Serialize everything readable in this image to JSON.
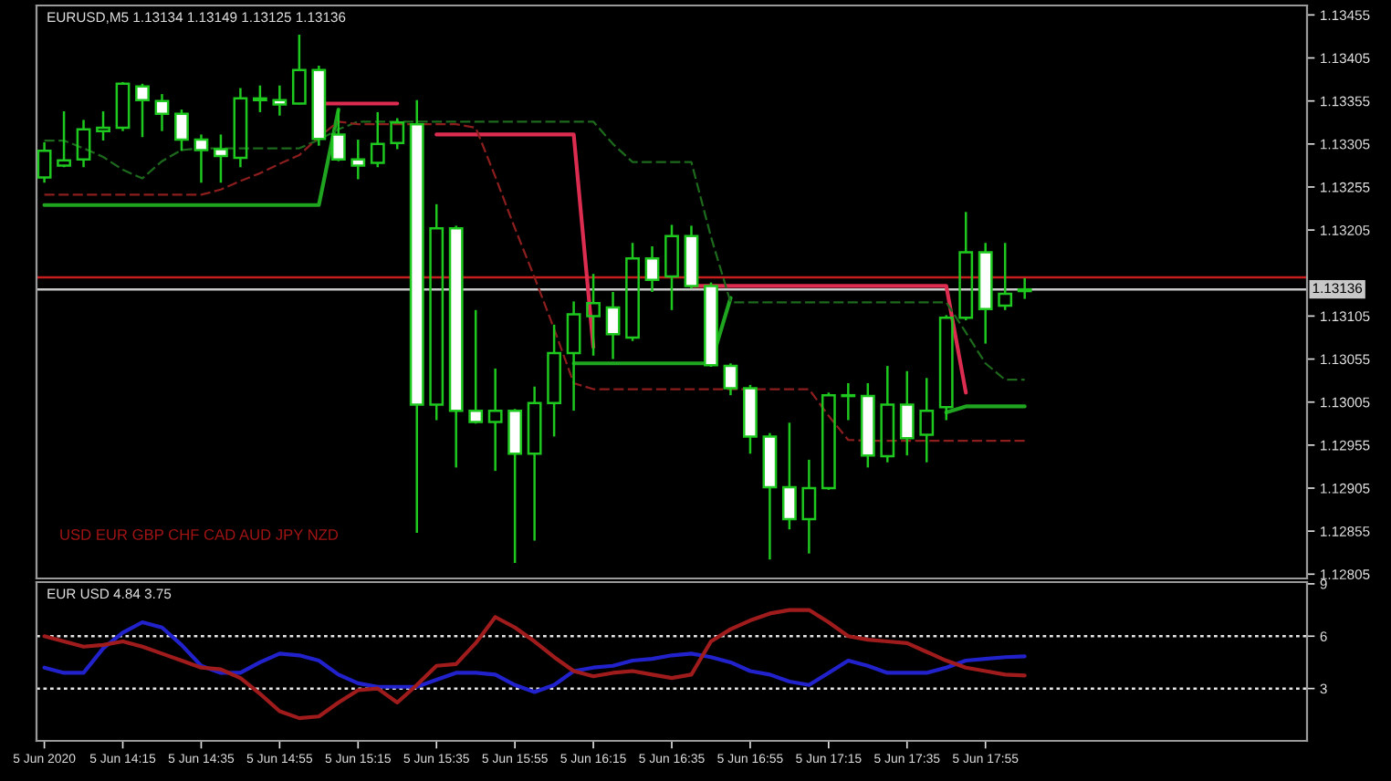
{
  "chart_data": [
    {
      "type": "candlestick",
      "title": "EURUSD,M5 1.13134 1.13149 1.13125 1.13136",
      "annotations": [
        "USD EUR GBP CHF CAD AUD JPY NZD"
      ],
      "x": [
        "2020-06-05T13:55",
        "2020-06-05T14:00",
        "2020-06-05T14:05",
        "2020-06-05T14:10",
        "2020-06-05T14:15",
        "2020-06-05T14:20",
        "2020-06-05T14:25",
        "2020-06-05T14:30",
        "2020-06-05T14:35",
        "2020-06-05T14:40",
        "2020-06-05T14:45",
        "2020-06-05T14:50",
        "2020-06-05T14:55",
        "2020-06-05T15:00",
        "2020-06-05T15:05",
        "2020-06-05T15:10",
        "2020-06-05T15:15",
        "2020-06-05T15:20",
        "2020-06-05T15:25",
        "2020-06-05T15:30",
        "2020-06-05T15:35",
        "2020-06-05T15:40",
        "2020-06-05T15:45",
        "2020-06-05T15:50",
        "2020-06-05T15:55",
        "2020-06-05T16:00",
        "2020-06-05T16:05",
        "2020-06-05T16:10",
        "2020-06-05T16:15",
        "2020-06-05T16:20",
        "2020-06-05T16:25",
        "2020-06-05T16:30",
        "2020-06-05T16:35",
        "2020-06-05T16:40",
        "2020-06-05T16:45",
        "2020-06-05T16:50",
        "2020-06-05T16:55",
        "2020-06-05T17:00",
        "2020-06-05T17:05",
        "2020-06-05T17:10",
        "2020-06-05T17:15",
        "2020-06-05T17:20",
        "2020-06-05T17:25",
        "2020-06-05T17:30",
        "2020-06-05T17:35",
        "2020-06-05T17:40",
        "2020-06-05T17:45",
        "2020-06-05T17:50",
        "2020-06-05T17:55",
        "2020-06-05T18:00",
        "2020-06-05T18:05"
      ],
      "ohlc": [
        [
          1.13266,
          1.13307,
          1.1326,
          1.13297
        ],
        [
          1.1328,
          1.13343,
          1.13278,
          1.13286
        ],
        [
          1.13287,
          1.13333,
          1.13278,
          1.13322
        ],
        [
          1.1332,
          1.13343,
          1.13309,
          1.13324
        ],
        [
          1.13324,
          1.13377,
          1.1332,
          1.13375
        ],
        [
          1.13372,
          1.13375,
          1.13313,
          1.13356
        ],
        [
          1.13355,
          1.13363,
          1.1332,
          1.1334
        ],
        [
          1.1334,
          1.13345,
          1.13297,
          1.1331
        ],
        [
          1.1331,
          1.13316,
          1.1326,
          1.13298
        ],
        [
          1.13299,
          1.13316,
          1.1326,
          1.13291
        ],
        [
          1.13289,
          1.1337,
          1.13278,
          1.13358
        ],
        [
          1.13358,
          1.13373,
          1.13342,
          1.13356
        ],
        [
          1.13356,
          1.13373,
          1.13338,
          1.13351
        ],
        [
          1.13352,
          1.13432,
          1.13351,
          1.13391
        ],
        [
          1.13391,
          1.13396,
          1.13303,
          1.13311
        ],
        [
          1.13316,
          1.13345,
          1.13285,
          1.13287
        ],
        [
          1.13287,
          1.1331,
          1.13264,
          1.1328
        ],
        [
          1.13283,
          1.13342,
          1.13278,
          1.13305
        ],
        [
          1.13306,
          1.13335,
          1.13299,
          1.1333
        ],
        [
          1.13328,
          1.13356,
          1.12853,
          1.13002
        ],
        [
          1.13002,
          1.13235,
          1.12984,
          1.13207
        ],
        [
          1.13207,
          1.1321,
          1.12929,
          1.12995
        ],
        [
          1.12995,
          1.13112,
          1.1298,
          1.12982
        ],
        [
          1.12982,
          1.13044,
          1.12925,
          1.12995
        ],
        [
          1.12995,
          1.12997,
          1.12818,
          1.12945
        ],
        [
          1.12945,
          1.13023,
          1.12844,
          1.13004
        ],
        [
          1.13004,
          1.13095,
          1.12965,
          1.13062
        ],
        [
          1.13062,
          1.13122,
          1.12995,
          1.13107
        ],
        [
          1.13105,
          1.13154,
          1.13059,
          1.1312
        ],
        [
          1.13115,
          1.13133,
          1.13055,
          1.13084
        ],
        [
          1.1308,
          1.1319,
          1.13076,
          1.13172
        ],
        [
          1.13172,
          1.13186,
          1.13133,
          1.13147
        ],
        [
          1.13151,
          1.13211,
          1.13112,
          1.13198
        ],
        [
          1.13198,
          1.1321,
          1.13137,
          1.1314
        ],
        [
          1.1314,
          1.13144,
          1.13046,
          1.13048
        ],
        [
          1.13047,
          1.1305,
          1.13013,
          1.13021
        ],
        [
          1.13021,
          1.13025,
          1.12945,
          1.12965
        ],
        [
          1.12965,
          1.12969,
          1.12822,
          1.12906
        ],
        [
          1.12906,
          1.12981,
          1.12857,
          1.12869
        ],
        [
          1.12869,
          1.12938,
          1.12829,
          1.12905
        ],
        [
          1.12905,
          1.13016,
          1.12903,
          1.13013
        ],
        [
          1.13013,
          1.13027,
          1.12984,
          1.13012
        ],
        [
          1.13012,
          1.13027,
          1.12929,
          1.12943
        ],
        [
          1.12942,
          1.13047,
          1.12935,
          1.13002
        ],
        [
          1.13002,
          1.13041,
          1.12943,
          1.12963
        ],
        [
          1.12967,
          1.13033,
          1.12935,
          1.12995
        ],
        [
          1.12999,
          1.13106,
          1.12984,
          1.13103
        ],
        [
          1.13103,
          1.13226,
          1.131,
          1.13179
        ],
        [
          1.13179,
          1.1319,
          1.13073,
          1.13113
        ],
        [
          1.13117,
          1.1319,
          1.13112,
          1.13131
        ],
        [
          1.13134,
          1.13149,
          1.13125,
          1.13136
        ]
      ],
      "color": "#1ec81e",
      "series": [
        {
          "type": "line",
          "color": "#1fa51f",
          "line_style": "solid",
          "values": [
            1.13234,
            1.13234,
            1.13234,
            1.13234,
            1.13234,
            1.13234,
            1.13234,
            1.13234,
            1.13234,
            1.13234,
            1.13234,
            1.13234,
            1.13234,
            1.13234,
            1.13234,
            1.13345,
            null,
            null,
            null,
            null,
            null,
            null,
            null,
            null,
            null,
            null,
            null,
            1.1305,
            1.1305,
            1.1305,
            1.1305,
            1.1305,
            1.1305,
            1.1305,
            1.1305,
            1.13126,
            null,
            null,
            null,
            null,
            null,
            null,
            null,
            null,
            null,
            null,
            1.12993,
            1.13,
            1.13,
            1.13,
            1.13
          ]
        },
        {
          "type": "line",
          "color": "#dc2c50",
          "line_style": "solid",
          "values": [
            null,
            null,
            null,
            null,
            null,
            null,
            null,
            null,
            null,
            null,
            null,
            null,
            null,
            null,
            1.13352,
            1.13352,
            1.13352,
            1.13352,
            1.13352,
            null,
            1.13316,
            1.13316,
            1.13316,
            1.13316,
            1.13316,
            1.13316,
            1.13316,
            1.13316,
            1.13069,
            null,
            null,
            null,
            null,
            1.1314,
            1.1314,
            1.1314,
            1.1314,
            1.1314,
            1.1314,
            1.1314,
            1.1314,
            1.1314,
            1.1314,
            1.1314,
            1.1314,
            1.1314,
            1.1314,
            1.13016,
            null,
            null,
            null
          ]
        },
        {
          "type": "line",
          "color": "#1d6a1d",
          "line_style": "dashed",
          "values": [
            1.13309,
            1.13309,
            1.133,
            1.1329,
            1.13275,
            1.13265,
            1.13285,
            1.13298,
            1.133,
            1.133,
            1.133,
            1.133,
            1.133,
            1.133,
            1.1331,
            1.13322,
            1.13331,
            1.13331,
            1.13331,
            1.13331,
            1.13331,
            1.13331,
            1.13331,
            1.13331,
            1.13331,
            1.13331,
            1.13331,
            1.13331,
            1.13331,
            1.13305,
            1.13284,
            1.13284,
            1.13284,
            1.13284,
            1.13197,
            1.13121,
            1.13121,
            1.13121,
            1.13121,
            1.13121,
            1.13121,
            1.13121,
            1.13121,
            1.13121,
            1.13121,
            1.13121,
            1.13121,
            1.13086,
            1.1305,
            1.13031,
            1.13031
          ]
        },
        {
          "type": "line",
          "color": "#8c1e1e",
          "line_style": "dashed",
          "values": [
            1.13246,
            1.13246,
            1.13246,
            1.13246,
            1.13246,
            1.13246,
            1.13246,
            1.13246,
            1.13246,
            1.13252,
            1.13262,
            1.13271,
            1.13282,
            1.13292,
            1.13313,
            1.13331,
            1.13328,
            1.13328,
            1.13328,
            1.13328,
            1.13328,
            1.13328,
            1.13324,
            1.13267,
            1.13207,
            1.1315,
            1.1309,
            1.13027,
            1.1302,
            1.1302,
            1.1302,
            1.1302,
            1.1302,
            1.1302,
            1.1302,
            1.1302,
            1.1302,
            1.1302,
            1.1302,
            1.1302,
            1.12989,
            1.12961,
            1.1296,
            1.1296,
            1.1296,
            1.1296,
            1.1296,
            1.1296,
            1.1296,
            1.1296,
            1.1296
          ]
        }
      ],
      "xlim": [
        "2020-06-05T13:53",
        "2020-06-05T19:17"
      ],
      "ylim": [
        1.128,
        1.13466
      ],
      "yticks": [
        1.12805,
        1.12855,
        1.12905,
        1.12955,
        1.13005,
        1.13055,
        1.13105,
        1.13205,
        1.13255,
        1.13305,
        1.13355,
        1.13405,
        1.13455
      ],
      "ref_lines": [
        {
          "axis": "y",
          "value": 1.1315,
          "color": "#c81e1e",
          "line_style": "solid"
        },
        {
          "axis": "y",
          "value": 1.13136,
          "label": "1.13136",
          "color": "#c8c8c8",
          "line_style": "solid"
        }
      ],
      "tick_labels": "y"
    },
    {
      "type": "line",
      "title": "EUR USD 4.84 3.75",
      "x": [
        "2020-06-05T13:55",
        "2020-06-05T14:00",
        "2020-06-05T14:05",
        "2020-06-05T14:10",
        "2020-06-05T14:15",
        "2020-06-05T14:20",
        "2020-06-05T14:25",
        "2020-06-05T14:30",
        "2020-06-05T14:35",
        "2020-06-05T14:40",
        "2020-06-05T14:45",
        "2020-06-05T14:50",
        "2020-06-05T14:55",
        "2020-06-05T15:00",
        "2020-06-05T15:05",
        "2020-06-05T15:10",
        "2020-06-05T15:15",
        "2020-06-05T15:20",
        "2020-06-05T15:25",
        "2020-06-05T15:30",
        "2020-06-05T15:35",
        "2020-06-05T15:40",
        "2020-06-05T15:45",
        "2020-06-05T15:50",
        "2020-06-05T15:55",
        "2020-06-05T16:00",
        "2020-06-05T16:05",
        "2020-06-05T16:10",
        "2020-06-05T16:15",
        "2020-06-05T16:20",
        "2020-06-05T16:25",
        "2020-06-05T16:30",
        "2020-06-05T16:35",
        "2020-06-05T16:40",
        "2020-06-05T16:45",
        "2020-06-05T16:50",
        "2020-06-05T16:55",
        "2020-06-05T17:00",
        "2020-06-05T17:05",
        "2020-06-05T17:10",
        "2020-06-05T17:15",
        "2020-06-05T17:20",
        "2020-06-05T17:25",
        "2020-06-05T17:30",
        "2020-06-05T17:35",
        "2020-06-05T17:40",
        "2020-06-05T17:45",
        "2020-06-05T17:50",
        "2020-06-05T17:55",
        "2020-06-05T18:00",
        "2020-06-05T18:05"
      ],
      "series": [
        {
          "color": "#2222cc",
          "line_style": "solid",
          "values": [
            4.2,
            3.9,
            3.9,
            5.3,
            6.2,
            6.8,
            6.5,
            5.5,
            4.3,
            3.9,
            3.9,
            4.5,
            5.0,
            4.9,
            4.6,
            3.8,
            3.3,
            3.1,
            3.1,
            3.1,
            3.5,
            3.9,
            3.9,
            3.8,
            3.2,
            2.8,
            3.2,
            4.0,
            4.2,
            4.3,
            4.6,
            4.7,
            4.9,
            5.0,
            4.8,
            4.5,
            4.0,
            3.8,
            3.4,
            3.2,
            3.9,
            4.6,
            4.3,
            3.9,
            3.9,
            3.9,
            4.2,
            4.6,
            4.7,
            4.8,
            4.84
          ]
        },
        {
          "color": "#a01c1c",
          "line_style": "solid",
          "values": [
            6.0,
            5.7,
            5.4,
            5.5,
            5.7,
            5.4,
            5.0,
            4.6,
            4.2,
            4.1,
            3.6,
            2.7,
            1.7,
            1.3,
            1.4,
            2.2,
            2.9,
            3.0,
            2.2,
            3.2,
            4.3,
            4.4,
            5.6,
            7.1,
            6.5,
            5.7,
            4.8,
            4.0,
            3.7,
            3.9,
            4.0,
            3.8,
            3.6,
            3.8,
            5.7,
            6.4,
            6.9,
            7.3,
            7.5,
            7.5,
            6.8,
            6.0,
            5.8,
            5.7,
            5.6,
            5.1,
            4.6,
            4.2,
            4.0,
            3.8,
            3.75
          ]
        }
      ],
      "xlim": [
        "2020-06-05T13:53",
        "2020-06-05T19:17"
      ],
      "xticks": [
        {
          "value": "2020-06-05T13:55",
          "label": "5 Jun 2020"
        },
        {
          "value": "2020-06-05T14:15",
          "label": "5 Jun 14:15"
        },
        {
          "value": "2020-06-05T14:35",
          "label": "5 Jun 14:35"
        },
        {
          "value": "2020-06-05T14:55",
          "label": "5 Jun 14:55"
        },
        {
          "value": "2020-06-05T15:15",
          "label": "5 Jun 15:15"
        },
        {
          "value": "2020-06-05T15:35",
          "label": "5 Jun 15:35"
        },
        {
          "value": "2020-06-05T15:55",
          "label": "5 Jun 15:55"
        },
        {
          "value": "2020-06-05T16:15",
          "label": "5 Jun 16:15"
        },
        {
          "value": "2020-06-05T16:35",
          "label": "5 Jun 16:35"
        },
        {
          "value": "2020-06-05T16:55",
          "label": "5 Jun 16:55"
        },
        {
          "value": "2020-06-05T17:15",
          "label": "5 Jun 17:15"
        },
        {
          "value": "2020-06-05T17:35",
          "label": "5 Jun 17:35"
        },
        {
          "value": "2020-06-05T17:55",
          "label": "5 Jun 17:55"
        }
      ],
      "ylim": [
        0,
        9.1
      ],
      "yticks": [
        3,
        6,
        9
      ],
      "ref_lines": [
        {
          "axis": "y",
          "value": 6,
          "color": "#e6e6e6",
          "line_style": "dotted"
        },
        {
          "axis": "y",
          "value": 3,
          "color": "#e6e6e6",
          "line_style": "dotted"
        }
      ]
    }
  ]
}
